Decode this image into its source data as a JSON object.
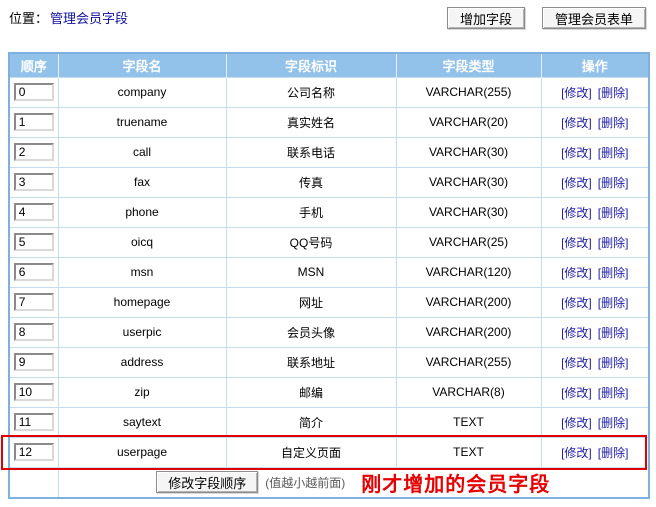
{
  "breadcrumb": {
    "label": "位置：",
    "link": "管理会员字段"
  },
  "toolbar": {
    "add_field_button": "增加字段",
    "manage_form_button": "管理会员表单"
  },
  "table": {
    "headers": [
      "顺序",
      "字段名",
      "字段标识",
      "字段类型",
      "操作"
    ],
    "modify_label": "[修改]",
    "delete_label": "[删除]",
    "rows": [
      {
        "order": "0",
        "name": "company",
        "label": "公司名称",
        "type": "VARCHAR(255)",
        "highlighted": false
      },
      {
        "order": "1",
        "name": "truename",
        "label": "真实姓名",
        "type": "VARCHAR(20)",
        "highlighted": false
      },
      {
        "order": "2",
        "name": "call",
        "label": "联系电话",
        "type": "VARCHAR(30)",
        "highlighted": false
      },
      {
        "order": "3",
        "name": "fax",
        "label": "传真",
        "type": "VARCHAR(30)",
        "highlighted": false
      },
      {
        "order": "4",
        "name": "phone",
        "label": "手机",
        "type": "VARCHAR(30)",
        "highlighted": false
      },
      {
        "order": "5",
        "name": "oicq",
        "label": "QQ号码",
        "type": "VARCHAR(25)",
        "highlighted": false
      },
      {
        "order": "6",
        "name": "msn",
        "label": "MSN",
        "type": "VARCHAR(120)",
        "highlighted": false
      },
      {
        "order": "7",
        "name": "homepage",
        "label": "网址",
        "type": "VARCHAR(200)",
        "highlighted": false
      },
      {
        "order": "8",
        "name": "userpic",
        "label": "会员头像",
        "type": "VARCHAR(200)",
        "highlighted": false
      },
      {
        "order": "9",
        "name": "address",
        "label": "联系地址",
        "type": "VARCHAR(255)",
        "highlighted": false
      },
      {
        "order": "10",
        "name": "zip",
        "label": "邮编",
        "type": "VARCHAR(8)",
        "highlighted": false
      },
      {
        "order": "11",
        "name": "saytext",
        "label": "简介",
        "type": "TEXT",
        "highlighted": false
      },
      {
        "order": "12",
        "name": "userpage",
        "label": "自定义页面",
        "type": "TEXT",
        "highlighted": true
      }
    ],
    "footer": {
      "reorder_button": "修改字段顺序",
      "hint": "(值越小越前面)",
      "annotation": "刚才增加的会员字段"
    }
  },
  "colors": {
    "header_bg": "#92c1e9",
    "table_border": "#7eb1df",
    "cell_border": "#c4ddf2",
    "link": "#2121a8",
    "breadcrumb_link": "#10109e",
    "annotation_red": "#e60000",
    "highlight_border": "#e00000"
  }
}
